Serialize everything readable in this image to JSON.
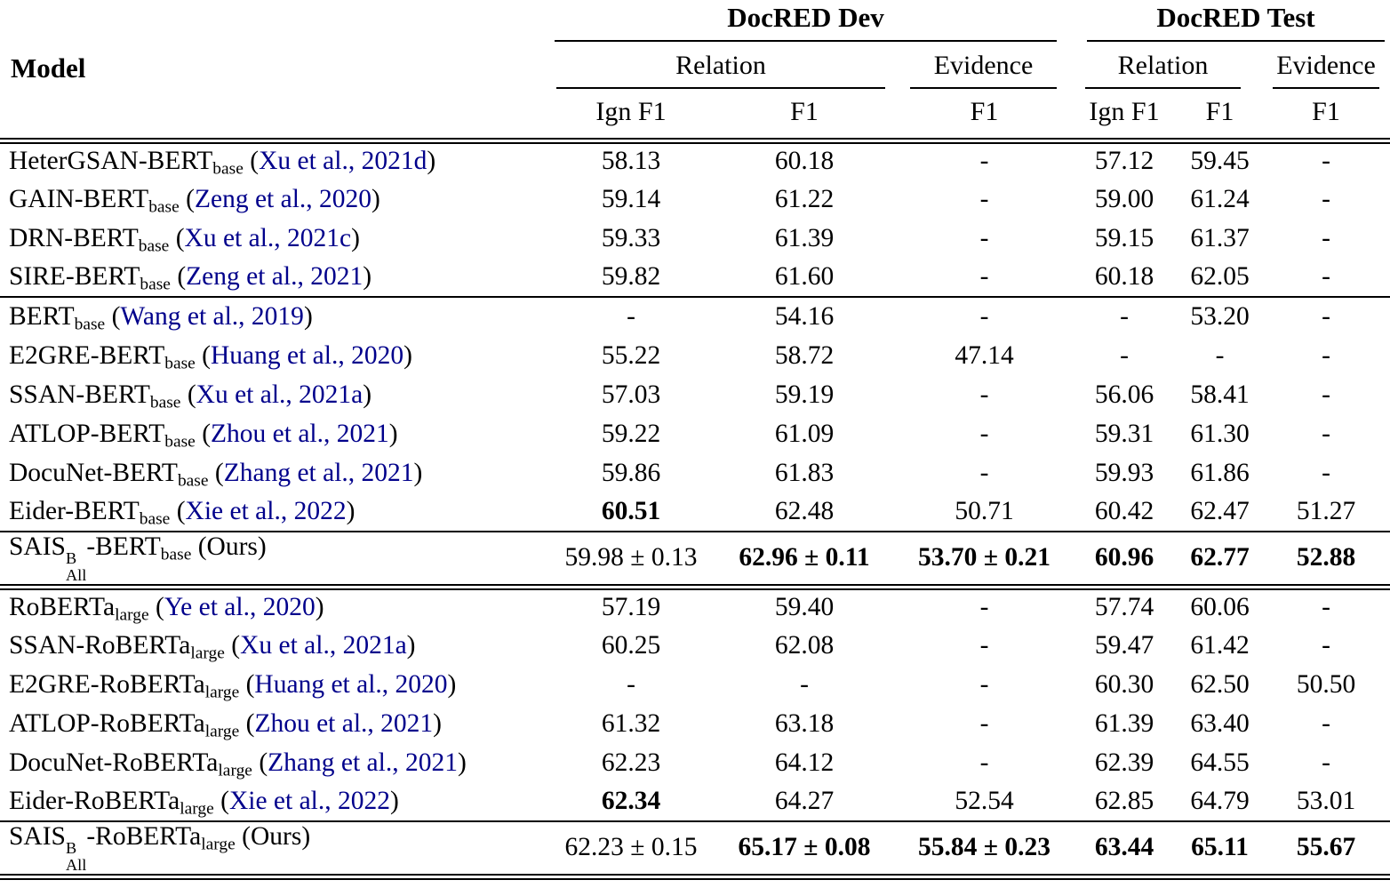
{
  "colors": {
    "citation": "#00008B",
    "text": "#000000",
    "rule": "#000000",
    "background": "#ffffff"
  },
  "table": {
    "header": {
      "model": "Model",
      "dev_label": "DocRED Dev",
      "test_label": "DocRED Test",
      "relation_label": "Relation",
      "evidence_label": "Evidence",
      "ign_f1_label": "Ign F1",
      "f1_label": "F1"
    },
    "blocks": [
      {
        "name": "bert-graph-models-block",
        "rule": "single",
        "rows": [
          {
            "model": [
              {
                "t": "text",
                "v": "HeterGSAN-BERT"
              },
              {
                "t": "sub",
                "v": "base"
              },
              {
                "t": "cite",
                "v": "Xu et al., 2021d"
              }
            ],
            "values": [
              {
                "v": "58.13",
                "b": false
              },
              {
                "v": "60.18",
                "b": false
              },
              {
                "v": "-",
                "b": false
              },
              {
                "v": "57.12",
                "b": false
              },
              {
                "v": "59.45",
                "b": false
              },
              {
                "v": "-",
                "b": false
              }
            ]
          },
          {
            "model": [
              {
                "t": "text",
                "v": "GAIN-BERT"
              },
              {
                "t": "sub",
                "v": "base"
              },
              {
                "t": "cite",
                "v": "Zeng et al., 2020"
              }
            ],
            "values": [
              {
                "v": "59.14",
                "b": false
              },
              {
                "v": "61.22",
                "b": false
              },
              {
                "v": "-",
                "b": false
              },
              {
                "v": "59.00",
                "b": false
              },
              {
                "v": "61.24",
                "b": false
              },
              {
                "v": "-",
                "b": false
              }
            ]
          },
          {
            "model": [
              {
                "t": "text",
                "v": "DRN-BERT"
              },
              {
                "t": "sub",
                "v": "base"
              },
              {
                "t": "cite",
                "v": "Xu et al., 2021c"
              }
            ],
            "values": [
              {
                "v": "59.33",
                "b": false
              },
              {
                "v": "61.39",
                "b": false
              },
              {
                "v": "-",
                "b": false
              },
              {
                "v": "59.15",
                "b": false
              },
              {
                "v": "61.37",
                "b": false
              },
              {
                "v": "-",
                "b": false
              }
            ]
          },
          {
            "model": [
              {
                "t": "text",
                "v": "SIRE-BERT"
              },
              {
                "t": "sub",
                "v": "base"
              },
              {
                "t": "cite",
                "v": "Zeng et al., 2021"
              }
            ],
            "values": [
              {
                "v": "59.82",
                "b": false
              },
              {
                "v": "61.60",
                "b": false
              },
              {
                "v": "-",
                "b": false
              },
              {
                "v": "60.18",
                "b": false
              },
              {
                "v": "62.05",
                "b": false
              },
              {
                "v": "-",
                "b": false
              }
            ]
          }
        ]
      },
      {
        "name": "bert-base-models-block",
        "rule": "single",
        "rows": [
          {
            "model": [
              {
                "t": "text",
                "v": "BERT"
              },
              {
                "t": "sub",
                "v": "base"
              },
              {
                "t": "cite",
                "v": "Wang et al., 2019"
              }
            ],
            "values": [
              {
                "v": "-",
                "b": false
              },
              {
                "v": "54.16",
                "b": false
              },
              {
                "v": "-",
                "b": false
              },
              {
                "v": "-",
                "b": false
              },
              {
                "v": "53.20",
                "b": false
              },
              {
                "v": "-",
                "b": false
              }
            ]
          },
          {
            "model": [
              {
                "t": "text",
                "v": "E2GRE-BERT"
              },
              {
                "t": "sub",
                "v": "base"
              },
              {
                "t": "cite",
                "v": "Huang et al., 2020"
              }
            ],
            "values": [
              {
                "v": "55.22",
                "b": false
              },
              {
                "v": "58.72",
                "b": false
              },
              {
                "v": "47.14",
                "b": false
              },
              {
                "v": "-",
                "b": false
              },
              {
                "v": "-",
                "b": false
              },
              {
                "v": "-",
                "b": false
              }
            ]
          },
          {
            "model": [
              {
                "t": "text",
                "v": "SSAN-BERT"
              },
              {
                "t": "sub",
                "v": "base"
              },
              {
                "t": "cite",
                "v": "Xu et al., 2021a"
              }
            ],
            "values": [
              {
                "v": "57.03",
                "b": false
              },
              {
                "v": "59.19",
                "b": false
              },
              {
                "v": "-",
                "b": false
              },
              {
                "v": "56.06",
                "b": false
              },
              {
                "v": "58.41",
                "b": false
              },
              {
                "v": "-",
                "b": false
              }
            ]
          },
          {
            "model": [
              {
                "t": "text",
                "v": "ATLOP-BERT"
              },
              {
                "t": "sub",
                "v": "base"
              },
              {
                "t": "cite",
                "v": "Zhou et al., 2021"
              }
            ],
            "values": [
              {
                "v": "59.22",
                "b": false
              },
              {
                "v": "61.09",
                "b": false
              },
              {
                "v": "-",
                "b": false
              },
              {
                "v": "59.31",
                "b": false
              },
              {
                "v": "61.30",
                "b": false
              },
              {
                "v": "-",
                "b": false
              }
            ]
          },
          {
            "model": [
              {
                "t": "text",
                "v": "DocuNet-BERT"
              },
              {
                "t": "sub",
                "v": "base"
              },
              {
                "t": "cite",
                "v": "Zhang et al., 2021"
              }
            ],
            "values": [
              {
                "v": "59.86",
                "b": false
              },
              {
                "v": "61.83",
                "b": false
              },
              {
                "v": "-",
                "b": false
              },
              {
                "v": "59.93",
                "b": false
              },
              {
                "v": "61.86",
                "b": false
              },
              {
                "v": "-",
                "b": false
              }
            ]
          },
          {
            "model": [
              {
                "t": "text",
                "v": "Eider-BERT"
              },
              {
                "t": "sub",
                "v": "base"
              },
              {
                "t": "cite",
                "v": "Xie et al., 2022"
              }
            ],
            "values": [
              {
                "v": "60.51",
                "b": true
              },
              {
                "v": "62.48",
                "b": false
              },
              {
                "v": "50.71",
                "b": false
              },
              {
                "v": "60.42",
                "b": false
              },
              {
                "v": "62.47",
                "b": false
              },
              {
                "v": "51.27",
                "b": false
              }
            ]
          }
        ]
      },
      {
        "name": "sais-bert-block",
        "rule": "double",
        "rows": [
          {
            "tall": true,
            "model": [
              {
                "t": "text",
                "v": "SAIS"
              },
              {
                "t": "supsub",
                "sup": "B",
                "sub": "All"
              },
              {
                "t": "text",
                "v": "-BERT"
              },
              {
                "t": "sub",
                "v": "base"
              },
              {
                "t": "text",
                "v": " (Ours)"
              }
            ],
            "values": [
              {
                "v": "59.98 ± 0.13",
                "b": false
              },
              {
                "v": "62.96 ± 0.11",
                "b": true
              },
              {
                "v": "53.70 ± 0.21",
                "b": true
              },
              {
                "v": "60.96",
                "b": true
              },
              {
                "v": "62.77",
                "b": true
              },
              {
                "v": "52.88",
                "b": true
              }
            ]
          }
        ]
      },
      {
        "name": "roberta-large-models-block",
        "rule": "single",
        "rows": [
          {
            "model": [
              {
                "t": "text",
                "v": "RoBERTa"
              },
              {
                "t": "sub",
                "v": "large"
              },
              {
                "t": "cite",
                "v": "Ye et al., 2020"
              }
            ],
            "values": [
              {
                "v": "57.19",
                "b": false
              },
              {
                "v": "59.40",
                "b": false
              },
              {
                "v": "-",
                "b": false
              },
              {
                "v": "57.74",
                "b": false
              },
              {
                "v": "60.06",
                "b": false
              },
              {
                "v": "-",
                "b": false
              }
            ]
          },
          {
            "model": [
              {
                "t": "text",
                "v": "SSAN-RoBERTa"
              },
              {
                "t": "sub",
                "v": "large"
              },
              {
                "t": "cite",
                "v": "Xu et al., 2021a"
              }
            ],
            "values": [
              {
                "v": "60.25",
                "b": false
              },
              {
                "v": "62.08",
                "b": false
              },
              {
                "v": "-",
                "b": false
              },
              {
                "v": "59.47",
                "b": false
              },
              {
                "v": "61.42",
                "b": false
              },
              {
                "v": "-",
                "b": false
              }
            ]
          },
          {
            "model": [
              {
                "t": "text",
                "v": "E2GRE-RoBERTa"
              },
              {
                "t": "sub",
                "v": "large"
              },
              {
                "t": "cite",
                "v": "Huang et al., 2020"
              }
            ],
            "values": [
              {
                "v": "-",
                "b": false
              },
              {
                "v": "-",
                "b": false
              },
              {
                "v": "-",
                "b": false
              },
              {
                "v": "60.30",
                "b": false
              },
              {
                "v": "62.50",
                "b": false
              },
              {
                "v": "50.50",
                "b": false
              }
            ]
          },
          {
            "model": [
              {
                "t": "text",
                "v": "ATLOP-RoBERTa"
              },
              {
                "t": "sub",
                "v": "large"
              },
              {
                "t": "cite",
                "v": "Zhou et al., 2021"
              }
            ],
            "values": [
              {
                "v": "61.32",
                "b": false
              },
              {
                "v": "63.18",
                "b": false
              },
              {
                "v": "-",
                "b": false
              },
              {
                "v": "61.39",
                "b": false
              },
              {
                "v": "63.40",
                "b": false
              },
              {
                "v": "-",
                "b": false
              }
            ]
          },
          {
            "model": [
              {
                "t": "text",
                "v": "DocuNet-RoBERTa"
              },
              {
                "t": "sub",
                "v": "large"
              },
              {
                "t": "cite",
                "v": "Zhang et al., 2021"
              }
            ],
            "values": [
              {
                "v": "62.23",
                "b": false
              },
              {
                "v": "64.12",
                "b": false
              },
              {
                "v": "-",
                "b": false
              },
              {
                "v": "62.39",
                "b": false
              },
              {
                "v": "64.55",
                "b": false
              },
              {
                "v": "-",
                "b": false
              }
            ]
          },
          {
            "model": [
              {
                "t": "text",
                "v": "Eider-RoBERTa"
              },
              {
                "t": "sub",
                "v": "large"
              },
              {
                "t": "cite",
                "v": "Xie et al., 2022"
              }
            ],
            "values": [
              {
                "v": "62.34",
                "b": true
              },
              {
                "v": "64.27",
                "b": false
              },
              {
                "v": "52.54",
                "b": false
              },
              {
                "v": "62.85",
                "b": false
              },
              {
                "v": "64.79",
                "b": false
              },
              {
                "v": "53.01",
                "b": false
              }
            ]
          }
        ]
      },
      {
        "name": "sais-roberta-block",
        "rule": "double",
        "rows": [
          {
            "tall": true,
            "model": [
              {
                "t": "text",
                "v": "SAIS"
              },
              {
                "t": "supsub",
                "sup": "B",
                "sub": "All"
              },
              {
                "t": "text",
                "v": "-RoBERTa"
              },
              {
                "t": "sub",
                "v": "large"
              },
              {
                "t": "text",
                "v": " (Ours)"
              }
            ],
            "values": [
              {
                "v": "62.23 ± 0.15",
                "b": false
              },
              {
                "v": "65.17 ± 0.08",
                "b": true
              },
              {
                "v": "55.84 ± 0.23",
                "b": true
              },
              {
                "v": "63.44",
                "b": true
              },
              {
                "v": "65.11",
                "b": true
              },
              {
                "v": "55.67",
                "b": true
              }
            ]
          }
        ]
      }
    ]
  }
}
